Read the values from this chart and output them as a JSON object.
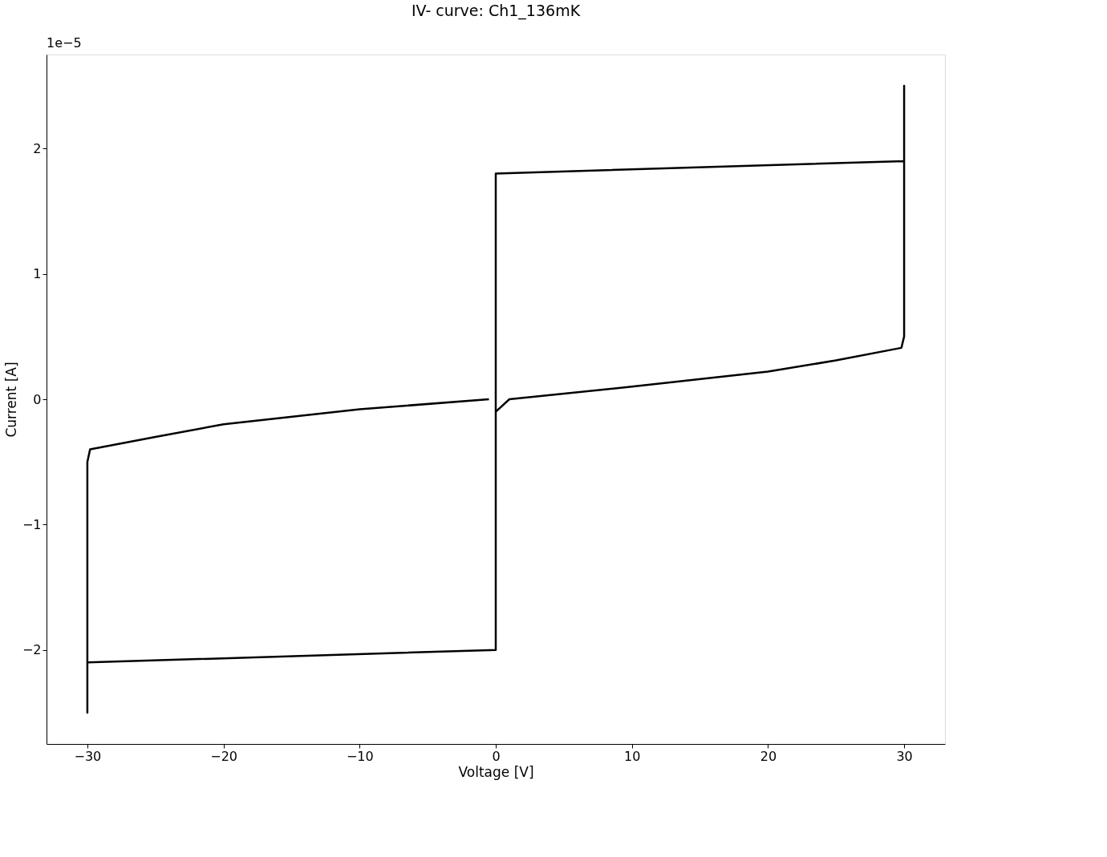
{
  "chart_data": {
    "type": "line",
    "title": "IV- curve: Ch1_136mK",
    "xlabel": "Voltage [V]",
    "ylabel": "Current [A]",
    "annotations": [
      "1e−5"
    ],
    "series": [
      {
        "color": "#000000",
        "x": [
          -0.5,
          -10,
          -20,
          -25,
          -29.8,
          -30,
          -30,
          -30,
          0,
          0,
          30,
          30,
          30,
          29.8,
          25,
          20,
          10,
          1,
          0
        ],
        "values": [
          0.0,
          -0.08,
          -0.2,
          -0.3,
          -0.4,
          -0.5,
          -2.5,
          -2.1,
          -2.0,
          1.8,
          1.9,
          2.5,
          0.5,
          0.41,
          0.31,
          0.22,
          0.1,
          0.0,
          -0.1
        ]
      }
    ],
    "xlim": [
      -33,
      33
    ],
    "ylim": [
      -2.75,
      2.75
    ],
    "xticks": [
      {
        "value": -30,
        "label": "−30"
      },
      {
        "value": -20,
        "label": "−20"
      },
      {
        "value": -10,
        "label": "−10"
      },
      0,
      10,
      20,
      30
    ],
    "yticks": [
      {
        "value": -2,
        "label": "−2"
      },
      {
        "value": -1,
        "label": "−1"
      },
      0,
      1,
      2
    ],
    "grid": false,
    "line_style": "solid",
    "marker": "none"
  }
}
